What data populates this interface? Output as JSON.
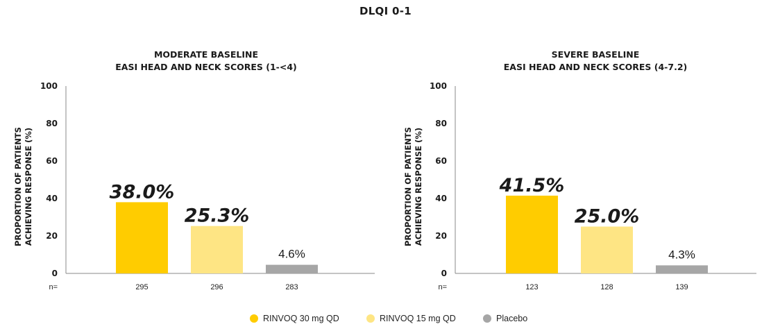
{
  "title": "DLQI 0-1",
  "chart_data": [
    {
      "type": "bar",
      "title_lines": [
        "MODERATE BASELINE",
        "EASI HEAD AND NECK SCORES (1-<4)"
      ],
      "ylabel_lines": [
        "PROPORTION OF PATIENTS",
        "ACHIEVING RESPONSE  (%)"
      ],
      "ylim": [
        0,
        100
      ],
      "yticks": [
        "0",
        "20",
        "40",
        "60",
        "80",
        "100"
      ],
      "n_label": "n=",
      "series": [
        {
          "name": "RINVOQ 30 mg QD",
          "value": 38.0,
          "label": "38.0%",
          "n": "295"
        },
        {
          "name": "RINVOQ 15 mg QD",
          "value": 25.3,
          "label": "25.3%",
          "n": "296"
        },
        {
          "name": "Placebo",
          "value": 4.6,
          "label": "4.6%",
          "n": "283"
        }
      ]
    },
    {
      "type": "bar",
      "title_lines": [
        "SEVERE BASELINE",
        "EASI HEAD AND NECK SCORES (4-7.2)"
      ],
      "ylabel_lines": [
        "PROPORTION OF PATIENTS",
        "ACHIEVING RESPONSE  (%)"
      ],
      "ylim": [
        0,
        100
      ],
      "yticks": [
        "0",
        "20",
        "40",
        "60",
        "80",
        "100"
      ],
      "n_label": "n=",
      "series": [
        {
          "name": "RINVOQ 30 mg QD",
          "value": 41.5,
          "label": "41.5%",
          "n": "123"
        },
        {
          "name": "RINVOQ 15 mg QD",
          "value": 25.0,
          "label": "25.0%",
          "n": "128"
        },
        {
          "name": "Placebo",
          "value": 4.3,
          "label": "4.3%",
          "n": "139"
        }
      ]
    }
  ],
  "legend": [
    {
      "label": "RINVOQ 30 mg QD",
      "color": "#FFCC00"
    },
    {
      "label": "RINVOQ 15 mg QD",
      "color": "#FEE584"
    },
    {
      "label": "Placebo",
      "color": "#A6A6A6"
    }
  ],
  "colors": {
    "bar_30mg": "#FFCC00",
    "bar_15mg": "#FEE584",
    "bar_placebo": "#A6A6A6",
    "axis": "#888888"
  }
}
